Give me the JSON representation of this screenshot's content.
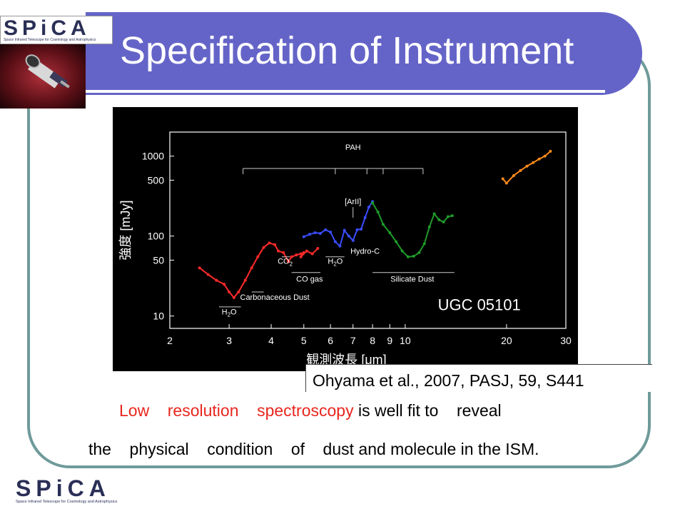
{
  "slide": {
    "title": "Specification of Instrument",
    "citation": "Ohyama et al., 2007, PASJ, 59, S441",
    "body_line1": {
      "red_words": [
        "Low",
        "resolution",
        "spectroscopy"
      ],
      "rest": "is well fit to    reveal"
    },
    "body_line2": "the    physical    condition    of    dust and molecule in the ISM."
  },
  "logo": {
    "wordmark": "SPiCA",
    "tagline": "Space Infrared Telescope for Cosmology and Astrophysics"
  },
  "colors": {
    "title_bar": "#6464c8",
    "frame": "#6f9a9a",
    "accent_red": "#e8261e",
    "series_red": "#ff2a2a",
    "series_blue": "#3a4cff",
    "series_green": "#1f9a2a",
    "series_orange": "#ff8a1a"
  },
  "chart_data": {
    "type": "line",
    "xscale": "log",
    "yscale": "log",
    "xlim": [
      2,
      30
    ],
    "ylim": [
      7,
      2000
    ],
    "xticks": [
      2,
      3,
      4,
      5,
      6,
      7,
      8,
      9,
      10,
      20,
      30
    ],
    "yticks": [
      10,
      50,
      100,
      500,
      1000
    ],
    "ylabel": "強度 [mJy]",
    "xlabel": "観測波長 [μm]",
    "object_label": "UGC 05101",
    "series": [
      {
        "color_key": "series_red",
        "x": [
          2.45,
          2.6,
          2.75,
          2.9,
          3.0,
          3.1,
          3.2,
          3.35,
          3.5,
          3.65,
          3.8,
          3.95,
          4.1,
          4.2,
          4.35,
          4.5,
          4.6,
          4.75,
          4.9,
          5.0
        ],
        "y": [
          40,
          33,
          28,
          25,
          20,
          17,
          20,
          28,
          40,
          55,
          72,
          82,
          78,
          65,
          62,
          48,
          55,
          58,
          60,
          62
        ]
      },
      {
        "color_key": "series_red",
        "x": [
          4.9,
          5.1,
          5.3,
          5.5
        ],
        "y": [
          55,
          65,
          60,
          70
        ]
      },
      {
        "color_key": "series_blue",
        "x": [
          5.0,
          5.2,
          5.4,
          5.6,
          5.8,
          6.0,
          6.2,
          6.4,
          6.6,
          6.8,
          7.0,
          7.2,
          7.4,
          7.6,
          7.8,
          8.0
        ],
        "y": [
          98,
          105,
          110,
          108,
          120,
          112,
          85,
          75,
          118,
          100,
          88,
          120,
          122,
          170,
          230,
          270
        ]
      },
      {
        "color_key": "series_green",
        "x": [
          8.0,
          8.3,
          8.6,
          9.0,
          9.4,
          9.8,
          10.2,
          10.6,
          11.0,
          11.4,
          11.8,
          12.2,
          12.6,
          13.0,
          13.4,
          13.8
        ],
        "y": [
          260,
          200,
          140,
          110,
          85,
          65,
          55,
          56,
          62,
          80,
          130,
          190,
          160,
          150,
          175,
          180
        ]
      },
      {
        "color_key": "series_orange",
        "x": [
          19.5,
          20,
          21,
          22,
          23,
          24,
          25,
          26,
          27
        ],
        "y": [
          520,
          460,
          570,
          660,
          750,
          830,
          920,
          1000,
          1150
        ]
      }
    ],
    "annotations": [
      {
        "text": "PAH",
        "x": 7.0,
        "y": 1200
      },
      {
        "text": "[ArII]",
        "x": 7.0,
        "y": 250
      },
      {
        "text": "CO",
        "sub": "2",
        "x": 4.4,
        "y": 45
      },
      {
        "text": "H",
        "sub": "2",
        "text2": "O",
        "x": 6.2,
        "y": 45
      },
      {
        "text": "Hydro-C",
        "x": 7.6,
        "y": 60
      },
      {
        "text": "CO gas",
        "x": 5.2,
        "y": 27
      },
      {
        "text": "Silicate Dust",
        "x": 10.5,
        "y": 27
      },
      {
        "text": "Carbonaceous Dust",
        "x": 4.1,
        "y": 16
      },
      {
        "text": "H",
        "sub": "2",
        "text2": "O",
        "x": 3.0,
        "y": 10.5
      }
    ]
  }
}
